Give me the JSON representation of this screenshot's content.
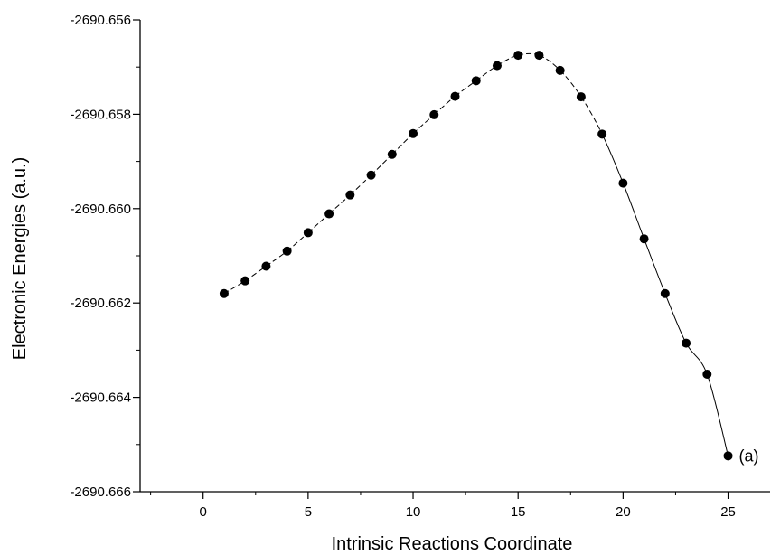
{
  "chart_data": {
    "type": "scatter",
    "xlabel": "Intrinsic Reactions Coordinate",
    "ylabel": "Electronic Energies (a.u.)",
    "xlim": [
      -3,
      27
    ],
    "ylim": [
      -2690.666,
      -2690.656
    ],
    "x_ticks": [
      0,
      5,
      10,
      15,
      20,
      25
    ],
    "x_tick_labels": [
      "0",
      "5",
      "10",
      "15",
      "20",
      "25"
    ],
    "y_ticks": [
      -2690.666,
      -2690.664,
      -2690.662,
      -2690.66,
      -2690.658,
      -2690.656
    ],
    "y_tick_labels": [
      "-2690.666",
      "-2690.664",
      "-2690.662",
      "-2690.660",
      "-2690.658",
      "-2690.656"
    ],
    "grid": false,
    "series": [
      {
        "x": [
          1,
          2,
          3,
          4,
          5,
          6,
          7,
          8,
          9,
          10,
          11,
          12,
          13,
          14,
          15,
          16,
          17,
          18,
          19,
          20,
          21,
          22,
          23,
          24,
          25
        ],
        "y": [
          -2690.6618,
          -2690.66153,
          -2690.66122,
          -2690.6609,
          -2690.66051,
          -2690.66011,
          -2690.65971,
          -2690.65929,
          -2690.65885,
          -2690.65841,
          -2690.65801,
          -2690.65762,
          -2690.65729,
          -2690.65697,
          -2690.65675,
          -2690.65675,
          -2690.65707,
          -2690.65763,
          -2690.65842,
          -2690.65946,
          -2690.66064,
          -2690.6618,
          -2690.66285,
          -2690.66351,
          -2690.66524
        ],
        "marker": "filled-circle",
        "line": "dashed-then-solid",
        "color": "#000000"
      }
    ],
    "annotations": [
      {
        "text": "(a)",
        "x": 25,
        "y": -2690.66524
      }
    ]
  }
}
